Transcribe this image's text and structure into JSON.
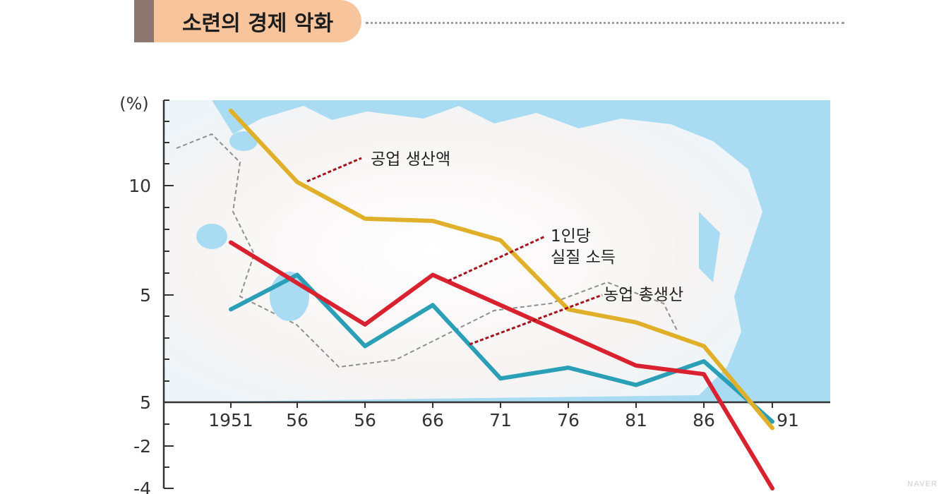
{
  "title": "소련의 경제 악화",
  "watermark": "NAVER",
  "chart_data": {
    "type": "line",
    "y_unit": "(%)",
    "x": [
      "1951",
      "56",
      "56",
      "66",
      "71",
      "76",
      "81",
      "86",
      "91"
    ],
    "y_tick_labels": [
      "10",
      "5",
      "5",
      "-2",
      "-4"
    ],
    "series": [
      {
        "name": "공업 생산액",
        "color": "#e0b02a",
        "values": [
          13.5,
          10.2,
          8.5,
          8.4,
          7.5,
          4.3,
          3.7,
          2.6,
          -1.2
        ]
      },
      {
        "name": "1인당 실질 소득",
        "color": "#d8222f",
        "values": [
          7.4,
          null,
          3.6,
          5.9,
          null,
          null,
          1.7,
          1.3,
          -4.0
        ]
      },
      {
        "name": "농업 총생산",
        "color": "#2a9fb5",
        "values": [
          4.3,
          5.9,
          2.6,
          4.5,
          1.1,
          1.6,
          0.8,
          1.9,
          -0.9
        ]
      }
    ],
    "labels": [
      {
        "series": 0,
        "lines": [
          "공업 생산액"
        ]
      },
      {
        "series": 1,
        "lines": [
          "1인당",
          "실질  소득"
        ]
      },
      {
        "series": 2,
        "lines": [
          "농업  총생산"
        ]
      }
    ]
  }
}
